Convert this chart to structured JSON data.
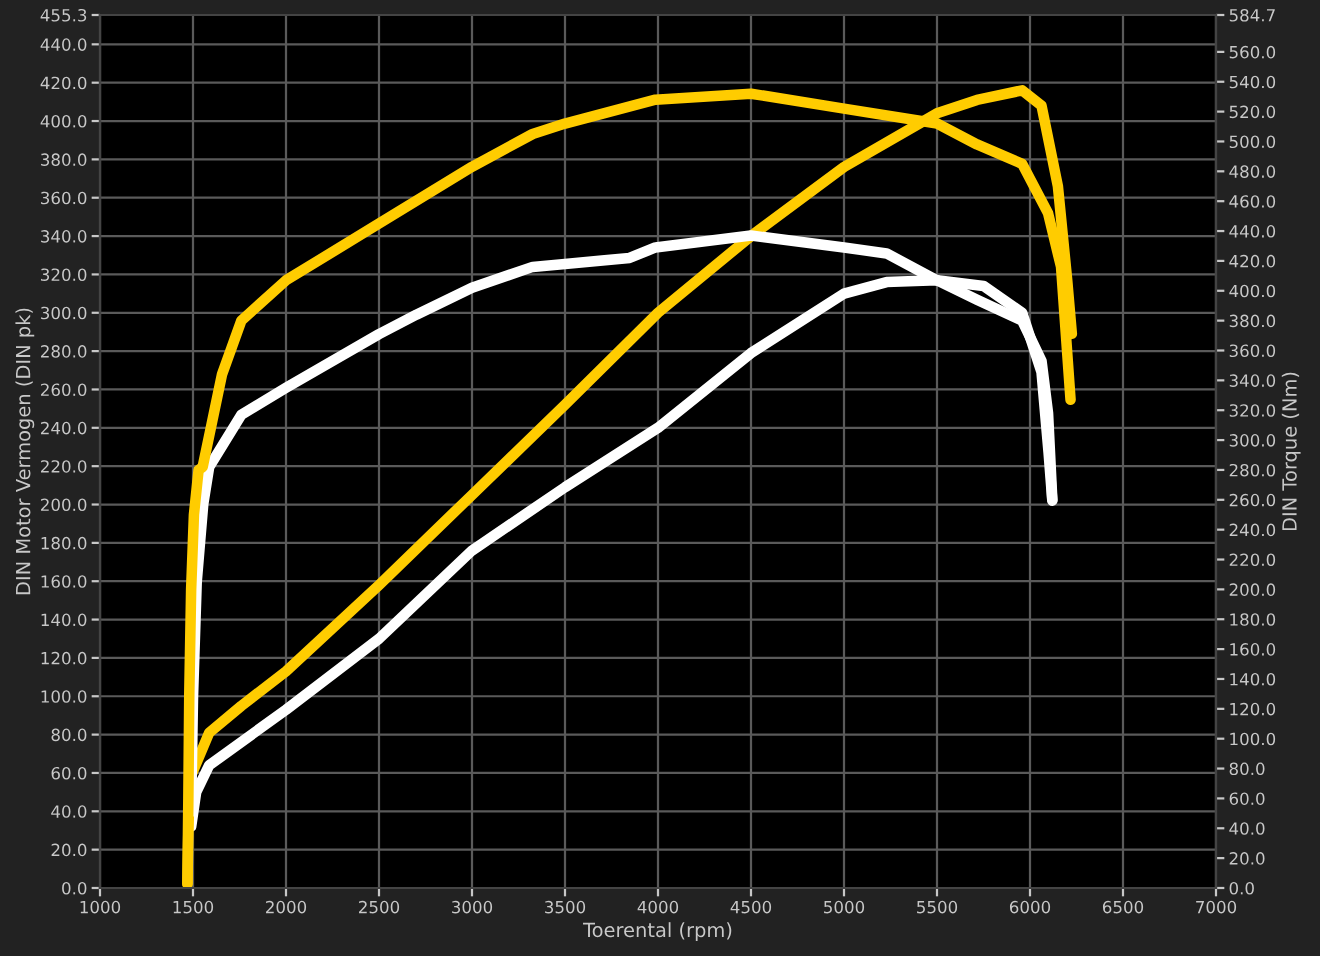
{
  "chart_data": {
    "type": "line",
    "xlabel": "Toerental (rpm)",
    "ylabel": "DIN Motor Vermogen (DIN pk)",
    "y2label": "DIN Torque (Nm)",
    "grid": true,
    "marker": "none",
    "line_style": "solid",
    "xlim": [
      1000,
      7000
    ],
    "xticks": [
      1000,
      1500,
      2000,
      2500,
      3000,
      3500,
      4000,
      4500,
      5000,
      5500,
      6000,
      6500,
      7000
    ],
    "ylim": [
      0,
      455.3
    ],
    "yticks": [
      {
        "value": 0,
        "label": "0.0"
      },
      {
        "value": 20,
        "label": "20.0"
      },
      {
        "value": 40,
        "label": "40.0"
      },
      {
        "value": 60,
        "label": "60.0"
      },
      {
        "value": 80,
        "label": "80.0"
      },
      {
        "value": 100,
        "label": "100.0"
      },
      {
        "value": 120,
        "label": "120.0"
      },
      {
        "value": 140,
        "label": "140.0"
      },
      {
        "value": 160,
        "label": "160.0"
      },
      {
        "value": 180,
        "label": "180.0"
      },
      {
        "value": 200,
        "label": "200.0"
      },
      {
        "value": 220,
        "label": "220.0"
      },
      {
        "value": 240,
        "label": "240.0"
      },
      {
        "value": 260,
        "label": "260.0"
      },
      {
        "value": 280,
        "label": "280.0"
      },
      {
        "value": 300,
        "label": "300.0"
      },
      {
        "value": 320,
        "label": "320.0"
      },
      {
        "value": 340,
        "label": "340.0"
      },
      {
        "value": 360,
        "label": "360.0"
      },
      {
        "value": 380,
        "label": "380.0"
      },
      {
        "value": 400,
        "label": "400.0"
      },
      {
        "value": 420,
        "label": "420.0"
      },
      {
        "value": 440,
        "label": "440.0"
      },
      {
        "value": 455.3,
        "label": "455.3"
      }
    ],
    "y2lim": [
      0,
      584.7
    ],
    "y2ticks": [
      {
        "value": 0,
        "label": "0.0"
      },
      {
        "value": 20,
        "label": "20.0"
      },
      {
        "value": 40,
        "label": "40.0"
      },
      {
        "value": 60,
        "label": "60.0"
      },
      {
        "value": 80,
        "label": "80.0"
      },
      {
        "value": 100,
        "label": "100.0"
      },
      {
        "value": 120,
        "label": "120.0"
      },
      {
        "value": 140,
        "label": "140.0"
      },
      {
        "value": 160,
        "label": "160.0"
      },
      {
        "value": 180,
        "label": "180.0"
      },
      {
        "value": 200,
        "label": "200.0"
      },
      {
        "value": 220,
        "label": "220.0"
      },
      {
        "value": 240,
        "label": "240.0"
      },
      {
        "value": 260,
        "label": "260.0"
      },
      {
        "value": 280,
        "label": "280.0"
      },
      {
        "value": 300,
        "label": "300.0"
      },
      {
        "value": 320,
        "label": "320.0"
      },
      {
        "value": 340,
        "label": "340.0"
      },
      {
        "value": 360,
        "label": "360.0"
      },
      {
        "value": 380,
        "label": "380.0"
      },
      {
        "value": 400,
        "label": "400.0"
      },
      {
        "value": 420,
        "label": "420.0"
      },
      {
        "value": 440,
        "label": "440.0"
      },
      {
        "value": 460,
        "label": "460.0"
      },
      {
        "value": 480,
        "label": "480.0"
      },
      {
        "value": 500,
        "label": "500.0"
      },
      {
        "value": 520,
        "label": "520.0"
      },
      {
        "value": 540,
        "label": "540.0"
      },
      {
        "value": 560,
        "label": "560.0"
      },
      {
        "value": 584.7,
        "label": "584.7"
      }
    ],
    "series": [
      {
        "color": "#ffffff",
        "x": [
          1490,
          1517,
          1587,
          2000,
          2500,
          3000,
          3500,
          4000,
          4500,
          5000,
          5229,
          5500,
          5750,
          5958,
          6062,
          6100,
          6120
        ],
        "values": [
          32,
          50,
          64,
          93,
          130,
          176,
          209,
          240,
          279,
          310,
          316,
          317,
          314,
          300,
          269,
          227,
          202
        ]
      },
      {
        "color": "#ffffff",
        "axis": "y2",
        "x": [
          1490,
          1500,
          1520,
          1555,
          1587,
          1760,
          2000,
          2500,
          2701,
          3000,
          3326,
          3500,
          3847,
          3986,
          4500,
          5000,
          5229,
          5500,
          5715,
          5958,
          6062,
          6097,
          6120
        ],
        "values": [
          51,
          128,
          205,
          257,
          282,
          317,
          335,
          371,
          384,
          402,
          416,
          418,
          422,
          429,
          437,
          429,
          425,
          407,
          394,
          380,
          353,
          318,
          260
        ]
      },
      {
        "color": "#ffcc00",
        "x": [
          1470,
          1475,
          1483,
          1587,
          1760,
          2000,
          2500,
          3000,
          3500,
          4000,
          4500,
          5000,
          5500,
          5715,
          5958,
          6062,
          6150,
          6200,
          6225
        ],
        "values": [
          2,
          30,
          57,
          81,
          95,
          113,
          158,
          205,
          252,
          300,
          340,
          376,
          404,
          411,
          416,
          408,
          366,
          317,
          289
        ]
      },
      {
        "color": "#ffcc00",
        "axis": "y2",
        "x": [
          1470,
          1475,
          1480,
          1490,
          1505,
          1530,
          1552,
          1656,
          1760,
          2000,
          2500,
          3000,
          3326,
          3500,
          3986,
          4500,
          5000,
          5500,
          5715,
          5958,
          6097,
          6167,
          6218
        ],
        "values": [
          3,
          60,
          130,
          200,
          250,
          280,
          282,
          344,
          380,
          407,
          445,
          483,
          505,
          512,
          528,
          532,
          522,
          512,
          498,
          485,
          452,
          416,
          327
        ]
      }
    ]
  }
}
